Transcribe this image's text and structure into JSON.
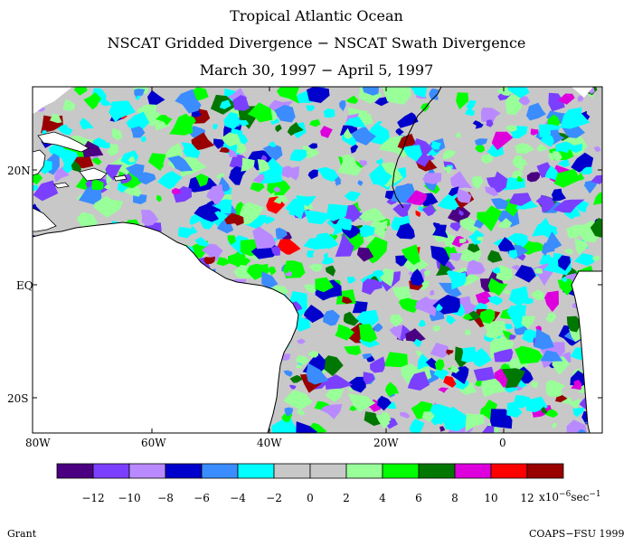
{
  "title": {
    "line1": "Tropical Atlantic Ocean",
    "line2": "NSCAT Gridded Divergence − NSCAT Swath Divergence",
    "line3": "March 30, 1997 − April 5, 1997"
  },
  "map": {
    "lat_labels": [
      "20N",
      "EQ",
      "20S"
    ],
    "lon_labels": [
      "80W",
      "60W",
      "40W",
      "20W",
      "0"
    ],
    "land_color": "#ffffff",
    "coast_color": "#000000",
    "region": "Tropical Atlantic Ocean"
  },
  "colorbar": {
    "colors": [
      "#4b0082",
      "#7b3fff",
      "#b98aff",
      "#0000cc",
      "#3a8cff",
      "#00ffff",
      "#c8c8c8",
      "#c8c8c8",
      "#99ff99",
      "#00ff00",
      "#007700",
      "#dd00dd",
      "#ff0000",
      "#990000"
    ],
    "tick_labels": [
      "−12",
      "−10",
      "−8",
      "−6",
      "−4",
      "−2",
      "0",
      "2",
      "4",
      "6",
      "8",
      "10",
      "12"
    ],
    "units_prefix": "x10",
    "units_exponent": "−6",
    "units_suffix": "sec",
    "units_suffix_exponent": "−1"
  },
  "footer": {
    "left": "Grant",
    "right": "COAPS−FSU 1999"
  }
}
